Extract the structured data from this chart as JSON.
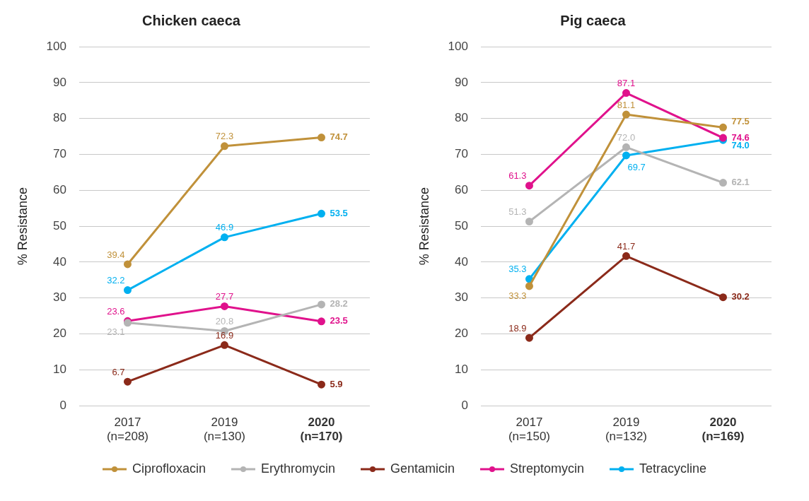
{
  "chart_data": [
    {
      "type": "line",
      "title": "Chicken caeca",
      "ylabel": "% Resistance",
      "categories": [
        "2017\n(n=208)",
        "2019\n(n=130)",
        "2020\n(n=170)"
      ],
      "ylim": [
        0,
        100
      ],
      "yticks": [
        0,
        10,
        20,
        30,
        40,
        50,
        60,
        70,
        80,
        90,
        100
      ],
      "grid": "y",
      "marker": "circle",
      "legend": "bottom",
      "series": [
        {
          "name": "Ciprofloxacin",
          "color": "#c0913a",
          "values": [
            39.4,
            72.3,
            74.7
          ],
          "value_labels": [
            "39.4",
            "72.3",
            "74.7"
          ]
        },
        {
          "name": "Erythromycin",
          "color": "#b4b4b4",
          "values": [
            23.1,
            20.8,
            28.2
          ],
          "value_labels": [
            "23.1",
            "20.8",
            "28.2"
          ]
        },
        {
          "name": "Gentamicin",
          "color": "#8b2a1a",
          "values": [
            6.7,
            16.9,
            5.9
          ],
          "value_labels": [
            "6.7",
            "16.9",
            "5.9"
          ]
        },
        {
          "name": "Streptomycin",
          "color": "#e0128c",
          "values": [
            23.6,
            27.7,
            23.5
          ],
          "value_labels": [
            "23.6",
            "27.7",
            "23.5"
          ]
        },
        {
          "name": "Tetracycline",
          "color": "#00b0f0",
          "values": [
            32.2,
            46.9,
            53.5
          ],
          "value_labels": [
            "32.2",
            "46.9",
            "53.5"
          ]
        }
      ]
    },
    {
      "type": "line",
      "title": "Pig caeca",
      "ylabel": "% Resistance",
      "categories": [
        "2017\n(n=150)",
        "2019\n(n=132)",
        "2020\n(n=169)"
      ],
      "ylim": [
        0,
        100
      ],
      "yticks": [
        0,
        10,
        20,
        30,
        40,
        50,
        60,
        70,
        80,
        90,
        100
      ],
      "grid": "y",
      "marker": "circle",
      "legend": "bottom",
      "series": [
        {
          "name": "Ciprofloxacin",
          "color": "#c0913a",
          "values": [
            33.3,
            81.1,
            77.5
          ],
          "value_labels": [
            "33.3",
            "81.1",
            "77.5"
          ]
        },
        {
          "name": "Erythromycin",
          "color": "#b4b4b4",
          "values": [
            51.3,
            72.0,
            62.1
          ],
          "value_labels": [
            "51.3",
            "72.0",
            "62.1"
          ]
        },
        {
          "name": "Gentamicin",
          "color": "#8b2a1a",
          "values": [
            18.9,
            41.7,
            30.2
          ],
          "value_labels": [
            "18.9",
            "41.7",
            "30.2"
          ]
        },
        {
          "name": "Streptomycin",
          "color": "#e0128c",
          "values": [
            61.3,
            87.1,
            74.6
          ],
          "value_labels": [
            "61.3",
            "87.1",
            "74.6"
          ]
        },
        {
          "name": "Tetracycline",
          "color": "#00b0f0",
          "values": [
            35.3,
            69.7,
            74.0
          ],
          "value_labels": [
            "35.3",
            "69.7",
            "74.0"
          ]
        }
      ]
    }
  ]
}
